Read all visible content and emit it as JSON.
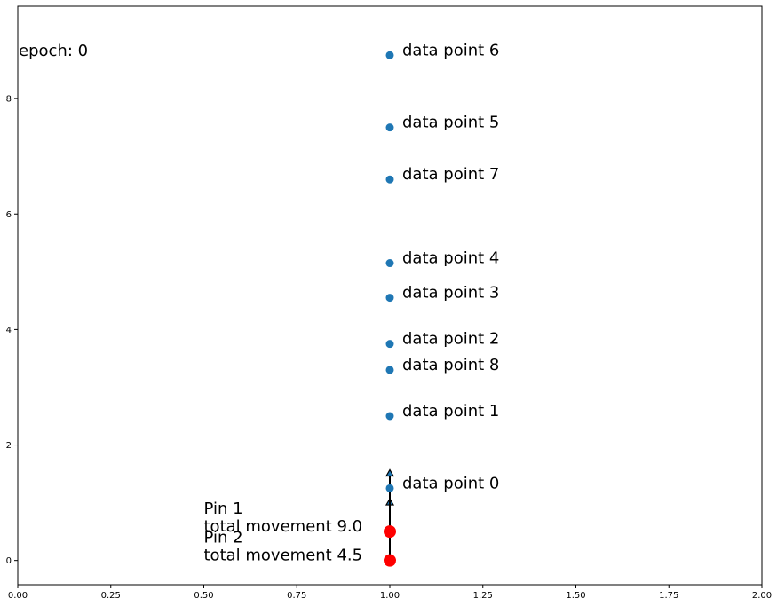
{
  "chart_data": {
    "type": "scatter",
    "title": "",
    "xlabel": "",
    "ylabel": "",
    "xlim": [
      0,
      2
    ],
    "ylim": [
      -0.42,
      9.6
    ],
    "grid": false,
    "x_ticks": [
      0,
      0.25,
      0.5,
      0.75,
      1,
      1.25,
      1.5,
      1.75,
      2
    ],
    "x_tick_labels": [
      "0.00",
      "0.25",
      "0.50",
      "0.75",
      "1.00",
      "1.25",
      "1.50",
      "1.75",
      "2.00"
    ],
    "y_ticks": [
      0,
      2,
      4,
      6,
      8
    ],
    "y_tick_labels": [
      "0",
      "2",
      "4",
      "6",
      "8"
    ],
    "epoch_text": "epoch: 0",
    "points": [
      {
        "label": "data point 0",
        "x": 1.0,
        "y": 1.25
      },
      {
        "label": "data point 1",
        "x": 1.0,
        "y": 2.5
      },
      {
        "label": "data point 8",
        "x": 1.0,
        "y": 3.3
      },
      {
        "label": "data point 2",
        "x": 1.0,
        "y": 3.75
      },
      {
        "label": "data point 3",
        "x": 1.0,
        "y": 4.55
      },
      {
        "label": "data point 4",
        "x": 1.0,
        "y": 5.15
      },
      {
        "label": "data point 7",
        "x": 1.0,
        "y": 6.6
      },
      {
        "label": "data point 5",
        "x": 1.0,
        "y": 7.5
      },
      {
        "label": "data point 6",
        "x": 1.0,
        "y": 8.75
      }
    ],
    "pins": [
      {
        "name": "Pin 1",
        "movement_text": "total movement 9.0",
        "x": 1.0,
        "y": 0.5
      },
      {
        "name": "Pin 2",
        "movement_text": "total movement 4.5",
        "x": 1.0,
        "y": 0.0
      }
    ],
    "arrows": [
      {
        "x": 1.0,
        "y_from": 0.0,
        "y_to": 1.07
      },
      {
        "x": 1.0,
        "y_from": 0.0,
        "y_to": 1.57
      }
    ],
    "colors": {
      "point": "#1f77b4",
      "pin": "#ff0000",
      "arrow": "#000000",
      "arrow_head": "#1f77b4"
    }
  }
}
